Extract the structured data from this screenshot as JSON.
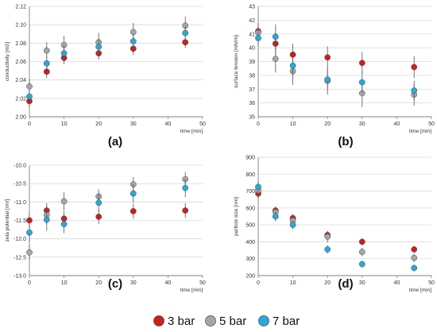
{
  "colors": {
    "3 bar": "#cc1f1f",
    "5 bar": "#a6a6a6",
    "7 bar": "#29a9db"
  },
  "legend": {
    "placement": "bottom-center",
    "items": [
      {
        "label": "3 bar",
        "color": "#cc1f1f"
      },
      {
        "label": "5 bar",
        "color": "#a6a6a6"
      },
      {
        "label": "7 bar",
        "color": "#29a9db"
      }
    ]
  },
  "chart_data": [
    {
      "type": "scatter",
      "panel": "(a)",
      "xlabel": "time [min]",
      "ylabel": "conductivity [mS]",
      "xlim": [
        0,
        50
      ],
      "xticks": [
        0,
        10,
        20,
        30,
        40,
        50
      ],
      "ylim": [
        2.0,
        2.12
      ],
      "yticks": [
        "2.00",
        "2.02",
        "2.04",
        "2.06",
        "2.08",
        "2.10",
        "2.12"
      ],
      "grid": true,
      "series": [
        {
          "name": "3 bar",
          "points": [
            [
              0,
              2.017
            ],
            [
              5,
              2.049
            ],
            [
              10,
              2.064
            ],
            [
              20,
              2.069
            ],
            [
              30,
              2.074
            ],
            [
              45,
              2.081
            ]
          ],
          "err": [
            0.006,
            0.007,
            0.007,
            0.007,
            0.007,
            0.006
          ]
        },
        {
          "name": "5 bar",
          "points": [
            [
              0,
              2.033
            ],
            [
              5,
              2.072
            ],
            [
              10,
              2.078
            ],
            [
              20,
              2.081
            ],
            [
              30,
              2.092
            ],
            [
              45,
              2.099
            ]
          ],
          "err": [
            0.008,
            0.009,
            0.01,
            0.01,
            0.01,
            0.01
          ]
        },
        {
          "name": "7 bar",
          "points": [
            [
              0,
              2.022
            ],
            [
              5,
              2.058
            ],
            [
              10,
              2.069
            ],
            [
              20,
              2.076
            ],
            [
              30,
              2.082
            ],
            [
              45,
              2.091
            ]
          ],
          "err": [
            0.007,
            0.008,
            0.008,
            0.008,
            0.008,
            0.007
          ]
        }
      ]
    },
    {
      "type": "scatter",
      "panel": "(b)",
      "xlabel": "time [min]",
      "ylabel": "surface tension [mN/m]",
      "xlim": [
        0,
        50
      ],
      "xticks": [
        0,
        10,
        20,
        30,
        40,
        50
      ],
      "ylim": [
        35,
        43
      ],
      "yticks": [
        "35",
        "36",
        "37",
        "38",
        "39",
        "40",
        "41",
        "42",
        "43"
      ],
      "grid": true,
      "series": [
        {
          "name": "3 bar",
          "points": [
            [
              0,
              41.2
            ],
            [
              5,
              40.3
            ],
            [
              10,
              39.5
            ],
            [
              20,
              39.3
            ],
            [
              30,
              38.9
            ],
            [
              45,
              38.6
            ]
          ],
          "err": [
            0.6,
            0.8,
            0.8,
            0.8,
            0.8,
            0.8
          ]
        },
        {
          "name": "5 bar",
          "points": [
            [
              0,
              41.1
            ],
            [
              5,
              39.2
            ],
            [
              10,
              38.3
            ],
            [
              20,
              37.6
            ],
            [
              30,
              36.7
            ],
            [
              45,
              36.6
            ]
          ],
          "err": [
            0.6,
            1.0,
            1.0,
            1.0,
            1.0,
            0.8
          ]
        },
        {
          "name": "7 bar",
          "points": [
            [
              0,
              40.7
            ],
            [
              5,
              40.8
            ],
            [
              10,
              38.7
            ],
            [
              20,
              37.7
            ],
            [
              30,
              37.5
            ],
            [
              45,
              36.9
            ]
          ],
          "err": [
            0.6,
            0.9,
            0.8,
            0.8,
            0.8,
            0.7
          ]
        }
      ]
    },
    {
      "type": "scatter",
      "panel": "(c)",
      "xlabel": "time [min]",
      "ylabel": "zeta potential [mV]",
      "xlim": [
        0,
        50
      ],
      "xticks": [
        0,
        10,
        20,
        30,
        40,
        50
      ],
      "ylim": [
        -13.0,
        -10.0
      ],
      "yticks": [
        "-13.0",
        "-12.5",
        "-12.0",
        "-11.5",
        "-11.0",
        "-10.5",
        "-10.0"
      ],
      "grid": true,
      "series": [
        {
          "name": "3 bar",
          "points": [
            [
              0,
              -11.5
            ],
            [
              5,
              -11.23
            ],
            [
              10,
              -11.45
            ],
            [
              20,
              -11.4
            ],
            [
              30,
              -11.25
            ],
            [
              45,
              -11.23
            ]
          ],
          "err": [
            0.2,
            0.2,
            0.2,
            0.2,
            0.2,
            0.2
          ]
        },
        {
          "name": "5 bar",
          "points": [
            [
              0,
              -12.37
            ],
            [
              5,
              -11.35
            ],
            [
              10,
              -10.98
            ],
            [
              20,
              -10.85
            ],
            [
              30,
              -10.52
            ],
            [
              45,
              -10.38
            ]
          ],
          "err": [
            0.2,
            0.25,
            0.25,
            0.2,
            0.2,
            0.2
          ]
        },
        {
          "name": "7 bar",
          "points": [
            [
              0,
              -11.83
            ],
            [
              5,
              -11.48
            ],
            [
              10,
              -11.6
            ],
            [
              20,
              -11.02
            ],
            [
              30,
              -10.77
            ],
            [
              45,
              -10.62
            ]
          ],
          "err": [
            0.25,
            0.3,
            0.25,
            0.25,
            0.25,
            0.25
          ]
        }
      ]
    },
    {
      "type": "scatter",
      "panel": "(d)",
      "xlabel": "time [min]",
      "ylabel": "particle size [nm]",
      "xlim": [
        0,
        50
      ],
      "xticks": [
        0,
        10,
        20,
        30,
        40,
        50
      ],
      "ylim": [
        200,
        900
      ],
      "yticks": [
        "200",
        "300",
        "400",
        "500",
        "600",
        "700",
        "800",
        "900"
      ],
      "grid": true,
      "series": [
        {
          "name": "3 bar",
          "points": [
            [
              0,
              685
            ],
            [
              5,
              585
            ],
            [
              10,
              540
            ],
            [
              20,
              440
            ],
            [
              30,
              400
            ],
            [
              45,
              355
            ]
          ],
          "err": [
            30,
            25,
            25,
            25,
            20,
            20
          ]
        },
        {
          "name": "5 bar",
          "points": [
            [
              0,
              705
            ],
            [
              5,
              575
            ],
            [
              10,
              525
            ],
            [
              20,
              430
            ],
            [
              30,
              340
            ],
            [
              45,
              305
            ]
          ],
          "err": [
            30,
            30,
            30,
            35,
            25,
            25
          ]
        },
        {
          "name": "7 bar",
          "points": [
            [
              0,
              725
            ],
            [
              5,
              550
            ],
            [
              10,
              500
            ],
            [
              20,
              355
            ],
            [
              30,
              268
            ],
            [
              45,
              245
            ]
          ],
          "err": [
            30,
            30,
            25,
            25,
            20,
            20
          ]
        }
      ]
    }
  ]
}
